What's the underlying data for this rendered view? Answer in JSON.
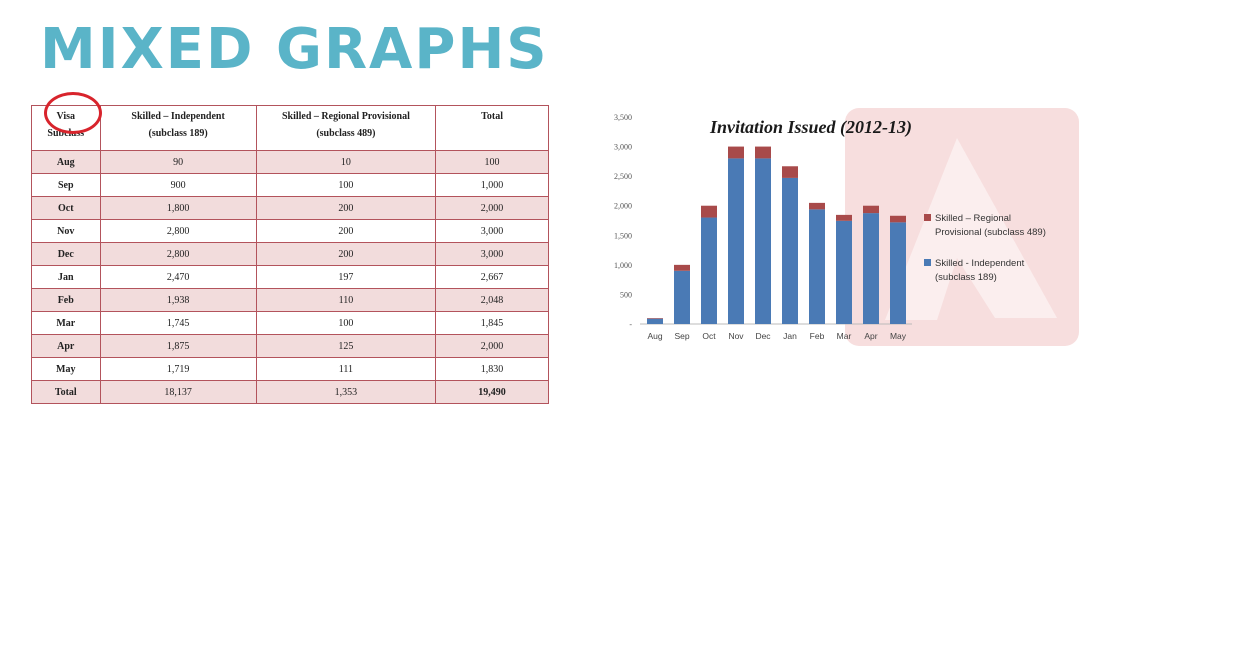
{
  "header": {
    "title": "MIXED GRAPHS"
  },
  "table": {
    "headers": [
      [
        "Visa",
        "Subclass"
      ],
      [
        "Skilled – Independent",
        "(subclass 189)"
      ],
      [
        "Skilled – Regional Provisional",
        "(subclass 489)"
      ],
      [
        "Total"
      ]
    ],
    "rows": [
      [
        "Aug",
        "90",
        "10",
        "100"
      ],
      [
        "Sep",
        "900",
        "100",
        "1,000"
      ],
      [
        "Oct",
        "1,800",
        "200",
        "2,000"
      ],
      [
        "Nov",
        "2,800",
        "200",
        "3,000"
      ],
      [
        "Dec",
        "2,800",
        "200",
        "3,000"
      ],
      [
        "Jan",
        "2,470",
        "197",
        "2,667"
      ],
      [
        "Feb",
        "1,938",
        "110",
        "2,048"
      ],
      [
        "Mar",
        "1,745",
        "100",
        "1,845"
      ],
      [
        "Apr",
        "1,875",
        "125",
        "2,000"
      ],
      [
        "May",
        "1,719",
        "111",
        "1,830"
      ],
      [
        "Total",
        "18,137",
        "1,353",
        "19,490"
      ]
    ]
  },
  "chart_data": {
    "type": "bar",
    "stacked": true,
    "title": "Invitation Issued (2012-13)",
    "categories": [
      "Aug",
      "Sep",
      "Oct",
      "Nov",
      "Dec",
      "Jan",
      "Feb",
      "Mar",
      "Apr",
      "May"
    ],
    "series": [
      {
        "name": "Skilled - Independent (subclass 189)",
        "color": "#4a7ab5",
        "values": [
          90,
          900,
          1800,
          2800,
          2800,
          2470,
          1938,
          1745,
          1875,
          1719
        ]
      },
      {
        "name": "Skilled – Regional Provisional (subclass 489)",
        "color": "#a84a4a",
        "values": [
          10,
          100,
          200,
          200,
          200,
          197,
          110,
          100,
          125,
          111
        ]
      }
    ],
    "ylim": [
      0,
      3500
    ],
    "yticks": [
      0,
      500,
      1000,
      1500,
      2000,
      2500,
      3000,
      3500
    ],
    "ytick_labels": [
      "-",
      "500",
      "1,000",
      "1,500",
      "2,000",
      "2,500",
      "3,000",
      "3,500"
    ],
    "legend_position": "right",
    "grid": false
  }
}
